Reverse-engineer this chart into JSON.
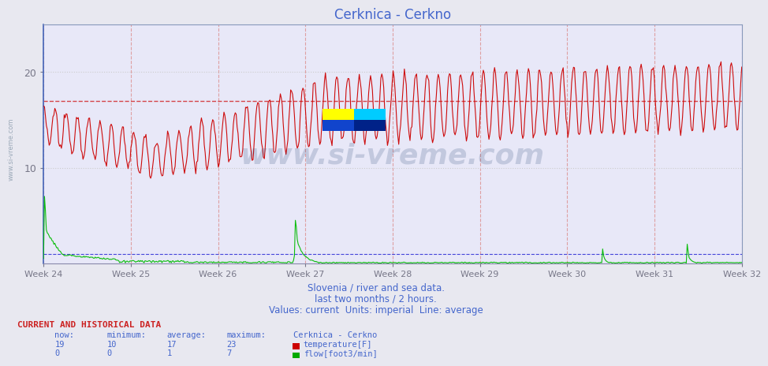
{
  "title": "Cerknica - Cerkno",
  "subtitle1": "Slovenia / river and sea data.",
  "subtitle2": "last two months / 2 hours.",
  "subtitle3": "Values: current  Units: imperial  Line: average",
  "footer_header": "CURRENT AND HISTORICAL DATA",
  "footer_cols": [
    "now:",
    "minimum:",
    "average:",
    "maximum:",
    "Cerknica - Cerkno"
  ],
  "temp_row": [
    "19",
    "10",
    "17",
    "23",
    "temperature[F]"
  ],
  "flow_row": [
    "0",
    "0",
    "1",
    "7",
    "flow[foot3/min]"
  ],
  "week_labels": [
    "Week 24",
    "Week 25",
    "Week 26",
    "Week 27",
    "Week 28",
    "Week 29",
    "Week 30",
    "Week 31",
    "Week 32"
  ],
  "ylim": [
    0,
    25
  ],
  "yticks": [
    10,
    20
  ],
  "temp_avg": 17,
  "flow_avg": 1,
  "temp_color": "#cc0000",
  "flow_color": "#00bb00",
  "avg_color_temp": "#cc0000",
  "avg_color_flow": "#0000cc",
  "bg_color": "#e8e8f0",
  "plot_bg": "#e8e8f8",
  "grid_color": "#cccccc",
  "vgrid_color": "#dd9999",
  "title_color": "#4466cc",
  "text_color": "#4466cc",
  "n_points": 744,
  "watermark_text": "www.si-vreme.com",
  "left_watermark": "www.si-vreme.com"
}
